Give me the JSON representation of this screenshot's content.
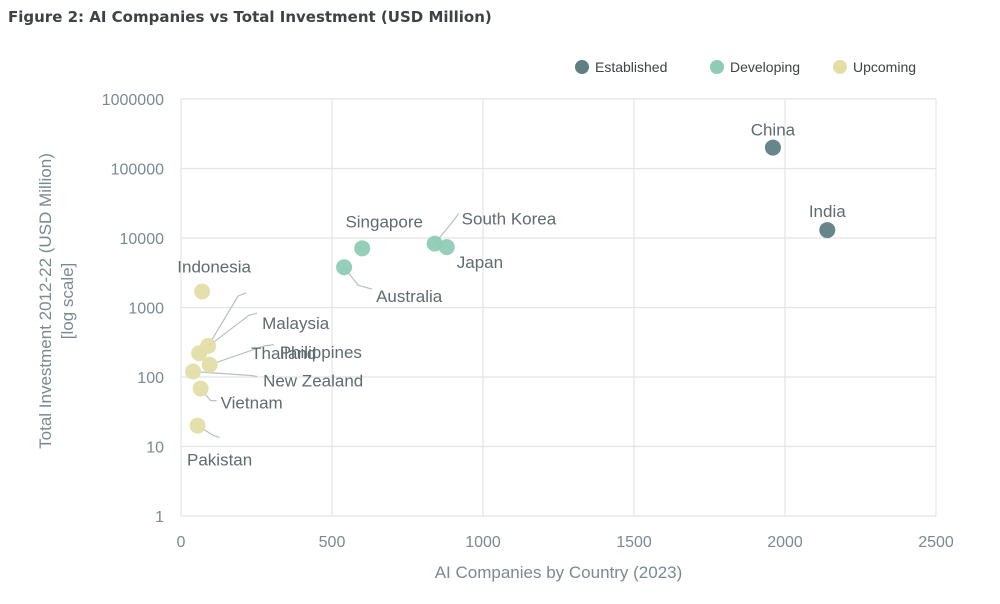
{
  "figure_title": "Figure 2: AI Companies vs Total Investment (USD Million)",
  "colors": {
    "Established": "#5f7f85",
    "Developing": "#8fcbb5",
    "Upcoming": "#e3dea6",
    "grid": "#e2e4e5",
    "text": "#7a8a90"
  },
  "chart_data": {
    "type": "scatter",
    "title": "Figure 2: AI Companies vs Total Investment (USD Million)",
    "xlabel": "AI Companies by Country (2023)",
    "ylabel_lines": [
      "Total Investment 2012-22 (USD Million)",
      "[log scale]"
    ],
    "xlim": [
      0,
      2500
    ],
    "ylim": [
      1,
      1000000
    ],
    "yscale": "log",
    "x_ticks": [
      "0",
      "500",
      "1000",
      "1500",
      "2000",
      "2500"
    ],
    "y_ticks": [
      "1",
      "10",
      "100",
      "1000",
      "10000",
      "100000",
      "1000000"
    ],
    "grid": true,
    "legend_position": "top-right",
    "series": [
      {
        "name": "Established",
        "points": [
          {
            "label": "China",
            "x": 1960,
            "y": 200000
          },
          {
            "label": "India",
            "x": 2140,
            "y": 13000
          }
        ]
      },
      {
        "name": "Developing",
        "points": [
          {
            "label": "Singapore",
            "x": 600,
            "y": 7100
          },
          {
            "label": "South Korea",
            "x": 840,
            "y": 8300
          },
          {
            "label": "Japan",
            "x": 880,
            "y": 7400
          },
          {
            "label": "Australia",
            "x": 540,
            "y": 3800
          }
        ]
      },
      {
        "name": "Upcoming",
        "points": [
          {
            "label": "Indonesia",
            "x": 70,
            "y": 1700
          },
          {
            "label": "Thailand",
            "x": 90,
            "y": 280
          },
          {
            "label": "Malaysia",
            "x": 60,
            "y": 220
          },
          {
            "label": "Philippines",
            "x": 95,
            "y": 150
          },
          {
            "label": "New Zealand",
            "x": 40,
            "y": 120
          },
          {
            "label": "Vietnam",
            "x": 65,
            "y": 68
          },
          {
            "label": "Pakistan",
            "x": 55,
            "y": 20
          }
        ]
      }
    ]
  }
}
